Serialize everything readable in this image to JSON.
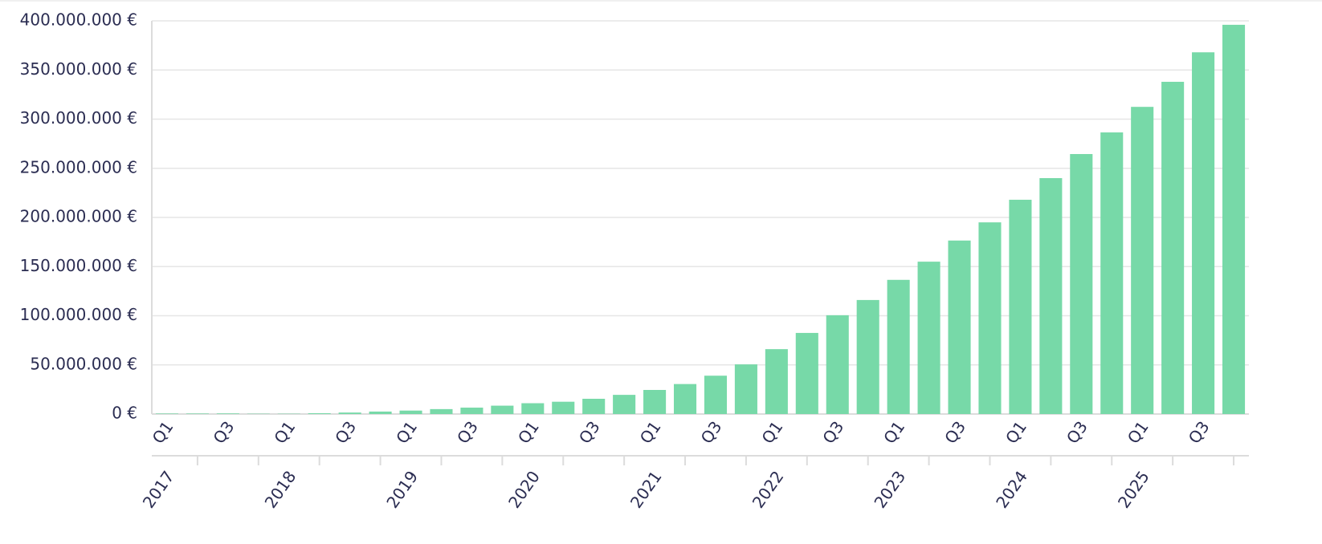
{
  "chart_data": {
    "type": "bar",
    "categories": [
      "Q1",
      null,
      "Q3",
      null,
      "Q1",
      null,
      "Q3",
      null,
      "Q1",
      null,
      "Q3",
      null,
      "Q1",
      null,
      "Q3",
      null,
      "Q1",
      null,
      "Q3",
      null,
      "Q1",
      null,
      "Q3",
      null,
      "Q1",
      null,
      "Q3",
      null,
      "Q1",
      null,
      "Q3",
      null,
      "Q1",
      null,
      "Q3",
      null
    ],
    "years": [
      "2017",
      "2018",
      "2019",
      "2020",
      "2021",
      "2022",
      "2023",
      "2024",
      "2025"
    ],
    "values": [
      500000,
      500000,
      600000,
      300000,
      300000,
      800000,
      1500000,
      2500000,
      3500000,
      5000000,
      6500000,
      8500000,
      11000000,
      12500000,
      15500000,
      19500000,
      24500000,
      30500000,
      39000000,
      50500000,
      66000000,
      82500000,
      100500000,
      116000000,
      136500000,
      155000000,
      176500000,
      195000000,
      218000000,
      240000000,
      264500000,
      286500000,
      312500000,
      338000000,
      368000000,
      396000000
    ],
    "color": "#77d9a8",
    "ylim": [
      0,
      400000000
    ],
    "yticks": [
      {
        "value": 0,
        "label": "0 €"
      },
      {
        "value": 50000000,
        "label": "50.000.000 €"
      },
      {
        "value": 100000000,
        "label": "100.000.000 €"
      },
      {
        "value": 150000000,
        "label": "150.000.000 €"
      },
      {
        "value": 200000000,
        "label": "200.000.000 €"
      },
      {
        "value": 250000000,
        "label": "250.000.000 €"
      },
      {
        "value": 300000000,
        "label": "300.000.000 €"
      },
      {
        "value": 350000000,
        "label": "350.000.000 €"
      },
      {
        "value": 400000000,
        "label": "400.000.000 €"
      }
    ],
    "grid": true
  }
}
